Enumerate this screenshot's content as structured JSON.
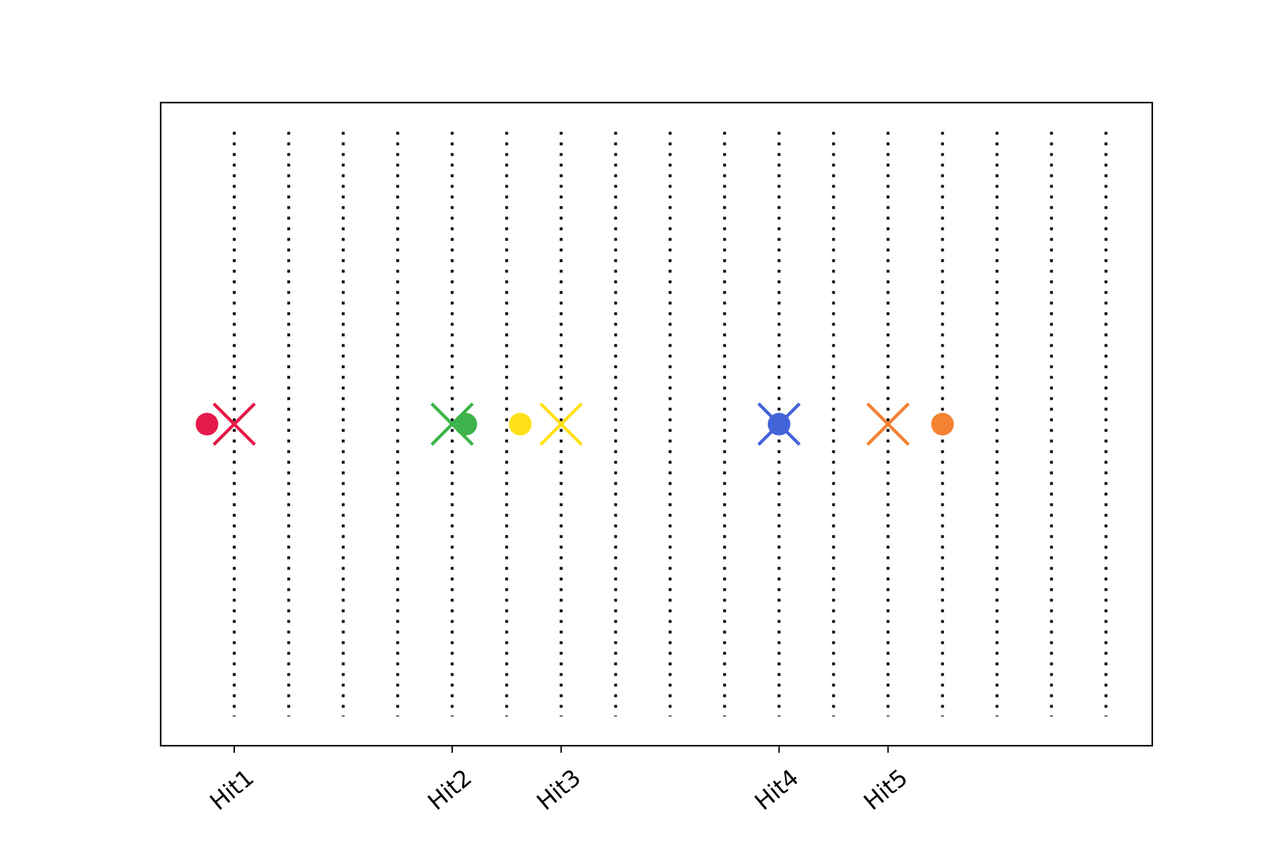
{
  "chart_data": {
    "type": "scatter",
    "title": "",
    "xlabel": "",
    "ylabel": "",
    "xlim": [
      -1.35,
      16.85
    ],
    "ylim": [
      -1.1,
      1.1
    ],
    "grid": false,
    "yticks_visible": false,
    "legend": null,
    "x_ticks": [
      {
        "value": 0,
        "label": "Hit1"
      },
      {
        "value": 4,
        "label": "Hit2"
      },
      {
        "value": 6,
        "label": "Hit3"
      },
      {
        "value": 10,
        "label": "Hit4"
      },
      {
        "value": 12,
        "label": "Hit5"
      }
    ],
    "reference_lines": {
      "style": "dotted",
      "color": "#000000",
      "x": [
        0,
        1,
        2,
        3,
        4,
        5,
        6,
        7,
        8,
        9,
        10,
        11,
        12,
        13,
        14,
        15,
        16
      ],
      "y_range": [
        -1.0,
        1.0
      ]
    },
    "series": [
      {
        "color": "#e6194b",
        "points": [
          {
            "x": -0.5,
            "y": 0,
            "marker": "circle"
          },
          {
            "x": 0,
            "y": 0,
            "marker": "x"
          }
        ]
      },
      {
        "color": "#3cb44b",
        "points": [
          {
            "x": 4.25,
            "y": 0,
            "marker": "circle"
          },
          {
            "x": 4,
            "y": 0,
            "marker": "x"
          }
        ]
      },
      {
        "color": "#ffe119",
        "points": [
          {
            "x": 5.25,
            "y": 0,
            "marker": "circle"
          },
          {
            "x": 6,
            "y": 0,
            "marker": "x"
          }
        ]
      },
      {
        "color": "#4363d8",
        "points": [
          {
            "x": 10,
            "y": 0,
            "marker": "circle"
          },
          {
            "x": 10,
            "y": 0,
            "marker": "x"
          }
        ]
      },
      {
        "color": "#f58231",
        "points": [
          {
            "x": 13,
            "y": 0,
            "marker": "circle"
          },
          {
            "x": 12,
            "y": 0,
            "marker": "x"
          }
        ]
      }
    ]
  }
}
